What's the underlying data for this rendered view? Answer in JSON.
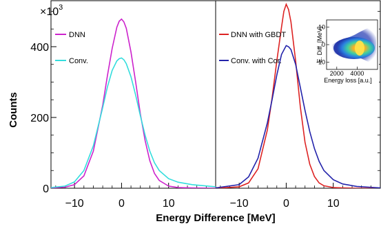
{
  "chart_data": [
    {
      "type": "line",
      "panel": "left",
      "xlim": [
        -15,
        20
      ],
      "ylim": [
        0,
        530
      ],
      "y_multiplier": "×10",
      "y_multiplier_exp": "3",
      "ylabel": "Counts",
      "xticks": [
        -10,
        0,
        10
      ],
      "xtick_labels": [
        "−10",
        "0",
        "10"
      ],
      "yticks": [
        0,
        200,
        400
      ],
      "ytick_labels": [
        "0",
        "200",
        "400"
      ],
      "legend_placement": "top-left",
      "series": [
        {
          "name": "DNN",
          "color": "#cc22cc",
          "x": [
            -15,
            -12,
            -10,
            -8,
            -6,
            -4,
            -3,
            -2,
            -1,
            -0.5,
            0,
            0.5,
            1,
            2,
            3,
            4,
            5,
            6,
            7,
            8,
            10,
            12,
            15,
            20
          ],
          "y": [
            1,
            3,
            10,
            35,
            105,
            235,
            318,
            395,
            455,
            472,
            478,
            470,
            452,
            385,
            300,
            210,
            135,
            78,
            42,
            22,
            6,
            2,
            1,
            0
          ]
        },
        {
          "name": "Conv.",
          "color": "#33dddd",
          "x": [
            -15,
            -12,
            -10,
            -8,
            -6,
            -4,
            -3,
            -2,
            -1,
            -0.5,
            0,
            0.5,
            1,
            2,
            3,
            4,
            5,
            6,
            7,
            8,
            10,
            12,
            15,
            20
          ],
          "y": [
            2,
            6,
            18,
            50,
            120,
            228,
            286,
            333,
            360,
            366,
            368,
            363,
            352,
            315,
            263,
            205,
            150,
            105,
            72,
            50,
            27,
            17,
            10,
            4
          ]
        }
      ]
    },
    {
      "type": "line",
      "panel": "right",
      "xlim": [
        -15,
        20
      ],
      "ylim": [
        0,
        530
      ],
      "xticks": [
        -10,
        0,
        10
      ],
      "xtick_labels": [
        "−10",
        "0",
        "10"
      ],
      "legend_placement": "top-left",
      "series": [
        {
          "name": "DNN with GBDT",
          "color": "#dd2222",
          "x": [
            -15,
            -10,
            -8,
            -6,
            -4,
            -3,
            -2,
            -1,
            -0.5,
            0,
            0.5,
            1,
            2,
            3,
            4,
            5,
            6,
            7,
            8,
            10,
            12,
            15,
            20
          ],
          "y": [
            0,
            4,
            15,
            55,
            165,
            255,
            360,
            455,
            500,
            520,
            505,
            470,
            360,
            230,
            130,
            68,
            33,
            15,
            7,
            2,
            1,
            0,
            0
          ]
        },
        {
          "name": "Conv. with Cor.",
          "color": "#2222aa",
          "x": [
            -15,
            -10,
            -8,
            -6,
            -4,
            -3,
            -2,
            -1,
            0,
            0.5,
            1,
            2,
            3,
            4,
            5,
            6,
            7,
            8,
            10,
            12,
            15,
            20
          ],
          "y": [
            1,
            10,
            32,
            85,
            185,
            250,
            320,
            378,
            403,
            400,
            392,
            350,
            285,
            220,
            160,
            112,
            76,
            50,
            24,
            12,
            5,
            1
          ]
        }
      ]
    },
    {
      "type": "heatmap",
      "panel": "inset",
      "xlabel": "Energy loss [a.u.]",
      "ylabel": "E. Diff. [MeV]",
      "xlim": [
        1000,
        6000
      ],
      "ylim": [
        -14,
        14
      ],
      "xticks": [
        2000,
        4000
      ],
      "xtick_labels": [
        "2000",
        "4000"
      ],
      "yticks": [
        -10,
        0,
        10
      ],
      "ytick_labels": [
        "-10",
        "0",
        "10"
      ]
    }
  ],
  "xlabel": "Energy Difference [MeV]"
}
